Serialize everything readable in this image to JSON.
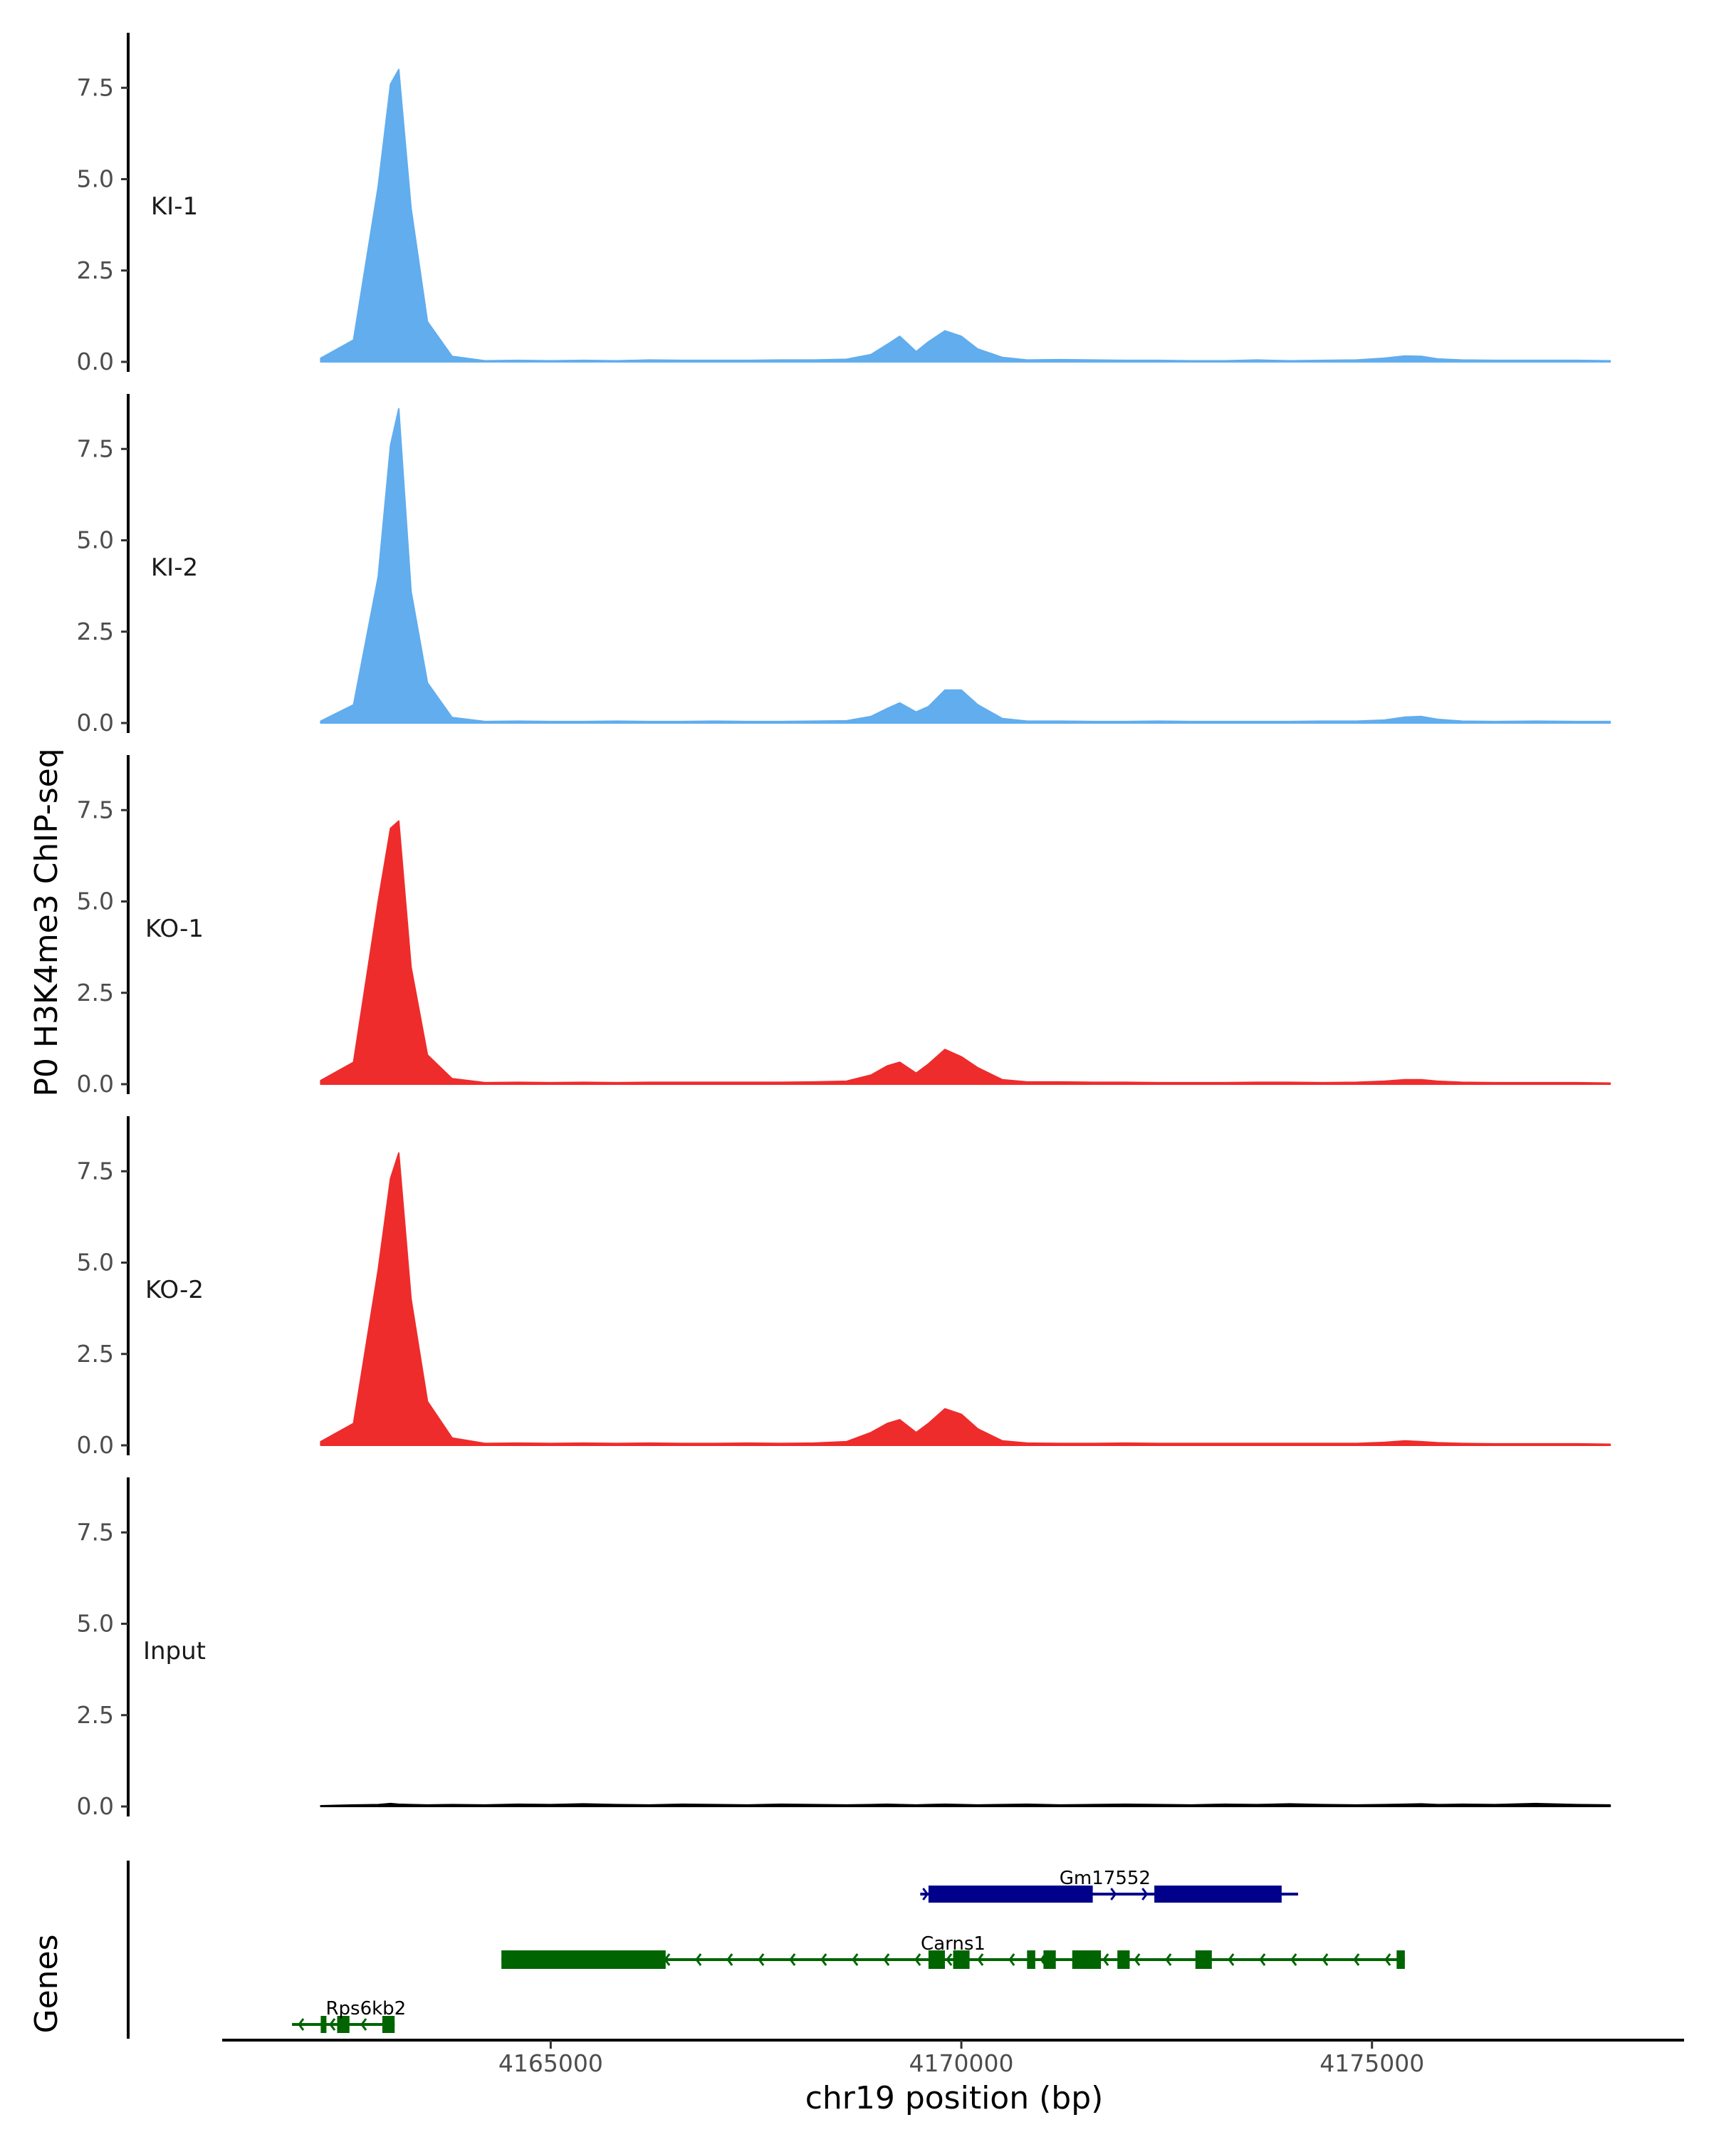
{
  "figure": {
    "ylabel": "P0 H3K4me3 ChIP-seq",
    "xlabel": "chr19 position (bp)",
    "genes_label": "Genes"
  },
  "chart_data": {
    "type": "area",
    "title": "",
    "xlabel": "chr19 position (bp)",
    "ylabel": "P0 H3K4me3 ChIP-seq",
    "xlim": [
      4161000,
      4178800
    ],
    "ylim": [
      0,
      8.8
    ],
    "x_ticks": [
      4165000,
      4170000,
      4175000
    ],
    "y_ticks": [
      0.0,
      2.5,
      5.0,
      7.5
    ],
    "grid": false,
    "legend": "none",
    "x": [
      4162200,
      4162600,
      4162900,
      4163050,
      4163150,
      4163300,
      4163500,
      4163800,
      4164200,
      4164600,
      4165000,
      4165400,
      4165800,
      4166200,
      4166600,
      4167000,
      4167400,
      4167800,
      4168200,
      4168600,
      4168900,
      4169100,
      4169250,
      4169450,
      4169600,
      4169800,
      4170000,
      4170200,
      4170500,
      4170800,
      4171200,
      4171600,
      4172000,
      4172400,
      4172800,
      4173200,
      4173600,
      4174000,
      4174400,
      4174800,
      4175150,
      4175400,
      4175600,
      4175800,
      4176100,
      4176500,
      4177000,
      4177500,
      4177900
    ],
    "series": [
      {
        "name": "KI-1",
        "color": "#61adee",
        "values": [
          0.1,
          0.6,
          4.8,
          7.6,
          8.0,
          4.2,
          1.1,
          0.15,
          0.03,
          0.04,
          0.03,
          0.04,
          0.03,
          0.05,
          0.04,
          0.04,
          0.04,
          0.05,
          0.05,
          0.07,
          0.2,
          0.48,
          0.7,
          0.28,
          0.55,
          0.85,
          0.7,
          0.35,
          0.12,
          0.05,
          0.06,
          0.05,
          0.04,
          0.04,
          0.03,
          0.03,
          0.05,
          0.03,
          0.04,
          0.05,
          0.1,
          0.16,
          0.15,
          0.08,
          0.05,
          0.04,
          0.04,
          0.04,
          0.03
        ]
      },
      {
        "name": "KI-2",
        "color": "#61adee",
        "values": [
          0.05,
          0.5,
          4.0,
          7.6,
          8.6,
          3.6,
          1.1,
          0.15,
          0.04,
          0.05,
          0.04,
          0.04,
          0.05,
          0.04,
          0.04,
          0.05,
          0.04,
          0.04,
          0.05,
          0.06,
          0.18,
          0.4,
          0.55,
          0.3,
          0.45,
          0.9,
          0.9,
          0.5,
          0.12,
          0.05,
          0.05,
          0.04,
          0.04,
          0.05,
          0.04,
          0.04,
          0.04,
          0.04,
          0.05,
          0.05,
          0.08,
          0.16,
          0.18,
          0.1,
          0.05,
          0.04,
          0.05,
          0.04,
          0.04
        ]
      },
      {
        "name": "KO-1",
        "color": "#ee2c2c",
        "values": [
          0.1,
          0.6,
          5.0,
          7.0,
          7.2,
          3.2,
          0.8,
          0.15,
          0.04,
          0.05,
          0.04,
          0.05,
          0.04,
          0.05,
          0.05,
          0.05,
          0.05,
          0.05,
          0.06,
          0.08,
          0.25,
          0.5,
          0.6,
          0.3,
          0.55,
          0.95,
          0.75,
          0.45,
          0.12,
          0.06,
          0.06,
          0.05,
          0.05,
          0.04,
          0.04,
          0.04,
          0.05,
          0.05,
          0.04,
          0.05,
          0.08,
          0.12,
          0.12,
          0.08,
          0.05,
          0.04,
          0.04,
          0.04,
          0.03
        ]
      },
      {
        "name": "KO-2",
        "color": "#ee2c2c",
        "values": [
          0.1,
          0.6,
          4.8,
          7.3,
          8.0,
          4.0,
          1.2,
          0.2,
          0.05,
          0.06,
          0.05,
          0.06,
          0.05,
          0.06,
          0.05,
          0.05,
          0.06,
          0.05,
          0.06,
          0.1,
          0.35,
          0.6,
          0.7,
          0.35,
          0.6,
          1.0,
          0.85,
          0.45,
          0.12,
          0.06,
          0.05,
          0.05,
          0.06,
          0.05,
          0.05,
          0.05,
          0.05,
          0.05,
          0.05,
          0.05,
          0.08,
          0.12,
          0.1,
          0.07,
          0.05,
          0.04,
          0.04,
          0.04,
          0.03
        ]
      },
      {
        "name": "Input",
        "color": "#000000",
        "values": [
          0.02,
          0.04,
          0.05,
          0.08,
          0.06,
          0.05,
          0.04,
          0.05,
          0.04,
          0.06,
          0.05,
          0.07,
          0.05,
          0.04,
          0.06,
          0.05,
          0.04,
          0.06,
          0.05,
          0.04,
          0.05,
          0.06,
          0.05,
          0.04,
          0.05,
          0.06,
          0.05,
          0.04,
          0.05,
          0.06,
          0.04,
          0.05,
          0.06,
          0.05,
          0.04,
          0.06,
          0.05,
          0.07,
          0.05,
          0.04,
          0.05,
          0.06,
          0.07,
          0.05,
          0.06,
          0.05,
          0.08,
          0.05,
          0.04
        ]
      }
    ],
    "gene_track": {
      "label": "Genes",
      "genes": [
        {
          "name": "Gm17552",
          "strand": "+",
          "color": "#00008b",
          "start": 4169500,
          "end": 4174100,
          "exons": [
            [
              4169600,
              4171600
            ],
            [
              4172350,
              4173900
            ]
          ]
        },
        {
          "name": "Carns1",
          "strand": "-",
          "color": "#006400",
          "start": 4164400,
          "end": 4175400,
          "exons": [
            [
              4164400,
              4166400
            ],
            [
              4169600,
              4169800
            ],
            [
              4169900,
              4170100
            ],
            [
              4170800,
              4170900
            ],
            [
              4171000,
              4171150
            ],
            [
              4171350,
              4171700
            ],
            [
              4171900,
              4172050
            ],
            [
              4172850,
              4173050
            ],
            [
              4175300,
              4175400
            ]
          ]
        },
        {
          "name": "Rps6kb2",
          "strand": "-",
          "color": "#006400",
          "start": 4161850,
          "end": 4163100,
          "exons": [
            [
              4162200,
              4162250
            ],
            [
              4162400,
              4162550
            ],
            [
              4162950,
              4163100
            ]
          ]
        }
      ]
    }
  }
}
